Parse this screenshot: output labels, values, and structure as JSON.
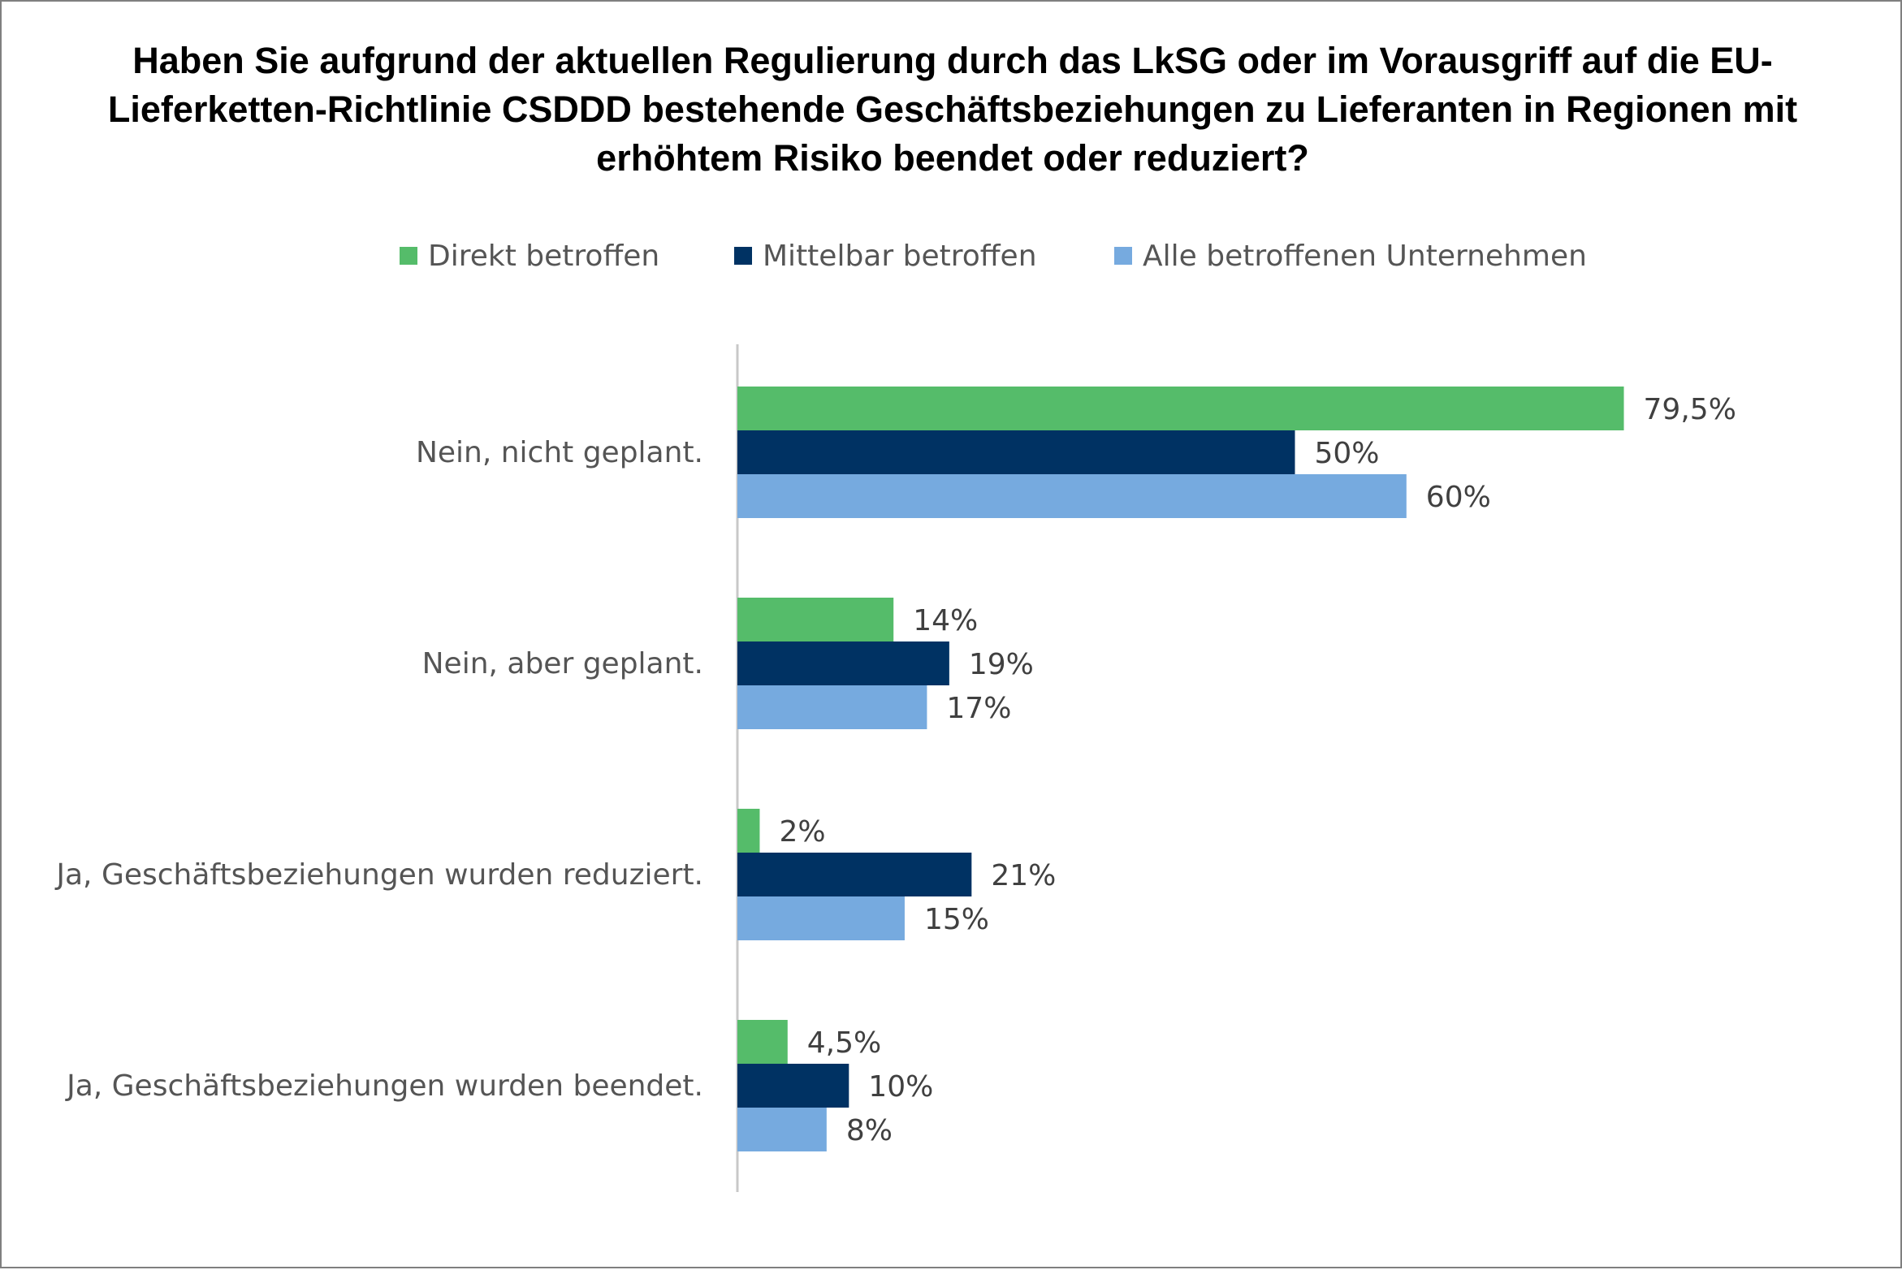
{
  "chart_data": {
    "type": "bar",
    "orientation": "horizontal",
    "title_lines": [
      "Haben Sie aufgrund der aktuellen Regulierung durch das LkSG oder im Vorausgriff auf die EU-",
      "Lieferketten-Richtlinie CSDDD bestehende Geschäftsbeziehungen zu Lieferanten in Regionen mit",
      "erhöhtem Risiko beendet oder reduziert?"
    ],
    "categories": [
      "Nein, nicht geplant.",
      "Nein, aber geplant.",
      "Ja, Geschäftsbeziehungen wurden reduziert.",
      "Ja, Geschäftsbeziehungen wurden beendet."
    ],
    "series": [
      {
        "name": "Direkt betroffen",
        "color": "#55bc6a",
        "values": [
          79.5,
          14,
          2,
          4.5
        ],
        "labels": [
          "79,5%",
          "14%",
          "2%",
          "4,5%"
        ]
      },
      {
        "name": "Mittelbar betroffen",
        "color": "#003263",
        "values": [
          50,
          19,
          21,
          10
        ],
        "labels": [
          "50%",
          "19%",
          "21%",
          "10%"
        ]
      },
      {
        "name": "Alle betroffenen Unternehmen",
        "color": "#76aadf",
        "values": [
          60,
          17,
          15,
          8
        ],
        "labels": [
          "60%",
          "17%",
          "15%",
          "8%"
        ]
      }
    ],
    "xlim": [
      0,
      100
    ],
    "legend_position": "top-center",
    "grid": false
  }
}
